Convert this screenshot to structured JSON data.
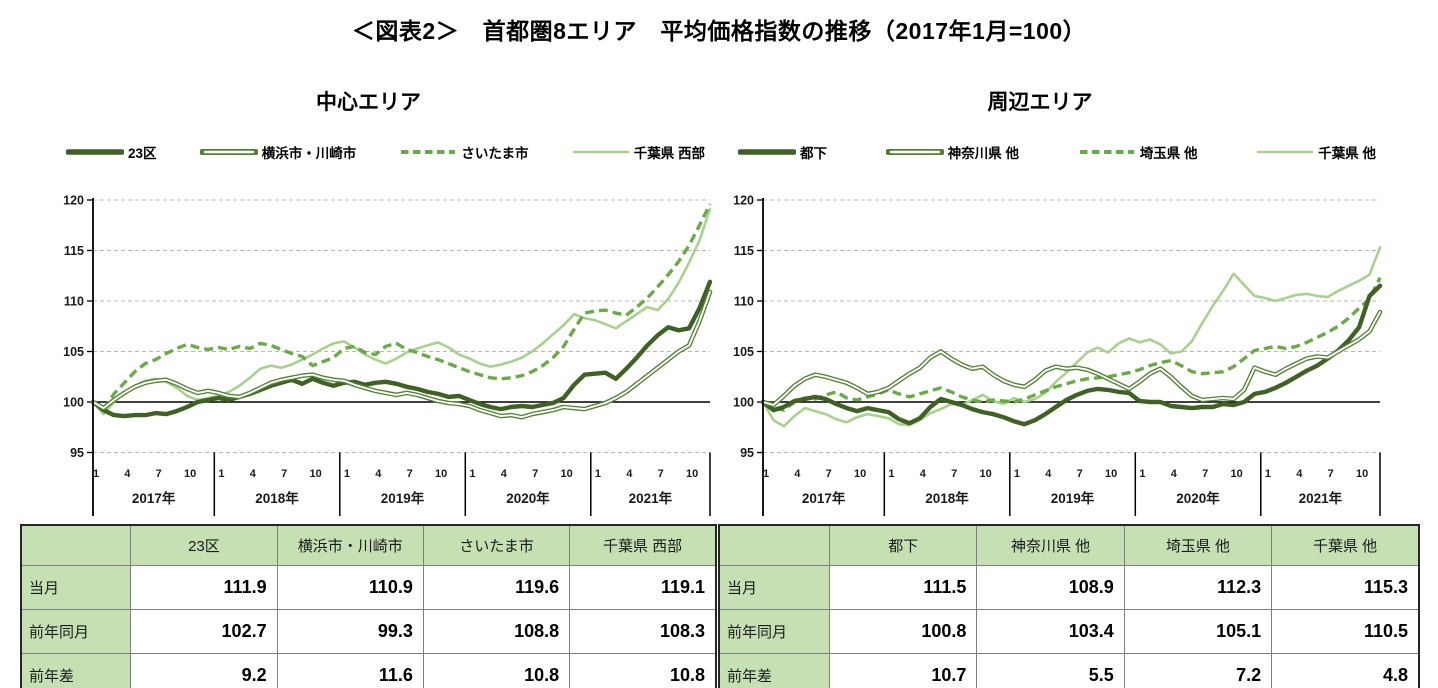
{
  "title": "＜図表2＞　首都圏8エリア　平均価格指数の推移（2017年1月=100）",
  "colors": {
    "dark_green": "#3f6123",
    "outline_green": "#538135",
    "dashed_green": "#6aaa47",
    "light_green": "#a9d18e",
    "table_header_bg": "#c6e0b4",
    "grid_gray": "#b8b8b8",
    "axis_black": "#000000"
  },
  "panels": [
    {
      "chart_title": "中心エリア",
      "table": {
        "corner": "",
        "columns": [
          "23区",
          "横浜市・川崎市",
          "さいたま市",
          "千葉県 西部"
        ],
        "rows": [
          {
            "label": "当月",
            "values": [
              "111.9",
              "110.9",
              "119.6",
              "119.1"
            ]
          },
          {
            "label": "前年同月",
            "values": [
              "102.7",
              "99.3",
              "108.8",
              "108.3"
            ]
          },
          {
            "label": "前年差",
            "values": [
              "9.2",
              "11.6",
              "10.8",
              "10.8"
            ]
          }
        ]
      }
    },
    {
      "chart_title": "周辺エリア",
      "table": {
        "corner": "",
        "columns": [
          "都下",
          "神奈川県 他",
          "埼玉県 他",
          "千葉県 他"
        ],
        "rows": [
          {
            "label": "当月",
            "values": [
              "111.5",
              "108.9",
              "112.3",
              "115.3"
            ]
          },
          {
            "label": "前年同月",
            "values": [
              "100.8",
              "103.4",
              "105.1",
              "110.5"
            ]
          },
          {
            "label": "前年差",
            "values": [
              "10.7",
              "5.5",
              "7.2",
              "4.8"
            ]
          }
        ]
      }
    }
  ],
  "chart_data": [
    {
      "type": "line",
      "title": "中心エリア",
      "x_unit": "month",
      "years": [
        "2017年",
        "2018年",
        "2019年",
        "2020年",
        "2021年"
      ],
      "month_ticks": [
        "1",
        "4",
        "7",
        "10"
      ],
      "ylim": [
        95,
        120
      ],
      "yticks": [
        95,
        100,
        105,
        110,
        115,
        120
      ],
      "baseline": 100,
      "grid": "dashed-horizontal",
      "legend_position": "top",
      "series": [
        {
          "name": "23区",
          "style": "thick-solid",
          "color": "#3f6123",
          "values": [
            100.0,
            99.2,
            98.7,
            98.6,
            98.7,
            98.7,
            98.9,
            98.8,
            99.1,
            99.5,
            100.0,
            100.2,
            100.4,
            100.2,
            100.5,
            100.8,
            101.2,
            101.6,
            101.9,
            102.2,
            101.8,
            102.3,
            101.9,
            101.6,
            101.9,
            102.0,
            101.7,
            101.9,
            102.0,
            101.8,
            101.5,
            101.3,
            101.0,
            100.8,
            100.5,
            100.6,
            100.2,
            99.8,
            99.5,
            99.3,
            99.5,
            99.6,
            99.5,
            99.7,
            99.9,
            100.4,
            101.7,
            102.7,
            102.8,
            102.9,
            102.3,
            103.3,
            104.4,
            105.6,
            106.6,
            107.4,
            107.1,
            107.3,
            109.3,
            111.9
          ]
        },
        {
          "name": "横浜市・川崎市",
          "style": "double-outline",
          "color": "#538135",
          "values": [
            100.0,
            99.4,
            100.2,
            100.9,
            101.5,
            101.9,
            102.1,
            102.2,
            101.8,
            101.3,
            100.9,
            101.1,
            100.9,
            100.6,
            100.5,
            100.9,
            101.4,
            101.9,
            102.2,
            102.4,
            102.6,
            102.7,
            102.4,
            102.2,
            102.1,
            101.7,
            101.4,
            101.1,
            100.9,
            100.7,
            100.9,
            100.7,
            100.4,
            100.1,
            99.9,
            99.8,
            99.6,
            99.2,
            98.9,
            98.6,
            98.7,
            98.5,
            98.8,
            99.0,
            99.2,
            99.5,
            99.4,
            99.3,
            99.6,
            99.9,
            100.4,
            101.0,
            101.8,
            102.6,
            103.4,
            104.2,
            105.0,
            105.6,
            108.0,
            110.9
          ]
        },
        {
          "name": "さいたま市",
          "style": "dashed",
          "color": "#6aaa47",
          "values": [
            100.0,
            99.2,
            100.8,
            101.9,
            103.0,
            103.8,
            104.2,
            104.8,
            105.3,
            105.7,
            105.4,
            105.2,
            105.4,
            105.2,
            105.5,
            105.3,
            105.8,
            105.6,
            105.2,
            104.8,
            104.5,
            103.6,
            104.0,
            104.4,
            105.3,
            105.5,
            104.9,
            104.7,
            105.5,
            105.8,
            105.2,
            104.9,
            104.5,
            104.2,
            103.8,
            103.4,
            103.0,
            102.7,
            102.4,
            102.3,
            102.4,
            102.6,
            103.0,
            103.6,
            104.4,
            105.5,
            107.2,
            108.8,
            109.0,
            109.1,
            108.8,
            108.6,
            109.4,
            110.3,
            111.4,
            112.6,
            113.9,
            115.5,
            117.5,
            119.6
          ]
        },
        {
          "name": "千葉県 西部",
          "style": "thin-solid",
          "color": "#a9d18e",
          "values": [
            100.0,
            98.8,
            100.0,
            100.9,
            101.6,
            102.1,
            102.3,
            102.0,
            101.4,
            100.6,
            100.2,
            100.4,
            100.6,
            101.0,
            101.6,
            102.4,
            103.3,
            103.6,
            103.4,
            103.7,
            104.2,
            104.7,
            105.3,
            105.8,
            106.0,
            105.4,
            104.7,
            104.2,
            103.8,
            104.3,
            104.9,
            105.3,
            105.6,
            105.9,
            105.4,
            104.7,
            104.3,
            103.8,
            103.5,
            103.7,
            104.0,
            104.4,
            105.0,
            105.8,
            106.7,
            107.6,
            108.7,
            108.3,
            108.1,
            107.7,
            107.3,
            108.0,
            108.7,
            109.4,
            109.1,
            110.2,
            111.8,
            113.8,
            116.0,
            119.1
          ]
        }
      ]
    },
    {
      "type": "line",
      "title": "周辺エリア",
      "x_unit": "month",
      "years": [
        "2017年",
        "2018年",
        "2019年",
        "2020年",
        "2021年"
      ],
      "month_ticks": [
        "1",
        "4",
        "7",
        "10"
      ],
      "ylim": [
        95,
        120
      ],
      "yticks": [
        95,
        100,
        105,
        110,
        115,
        120
      ],
      "baseline": 100,
      "grid": "dashed-horizontal",
      "legend_position": "top",
      "series": [
        {
          "name": "都下",
          "style": "thick-solid",
          "color": "#3f6123",
          "values": [
            100.0,
            99.2,
            99.5,
            100.1,
            100.3,
            100.5,
            100.3,
            99.8,
            99.4,
            99.1,
            99.4,
            99.2,
            99.0,
            98.3,
            97.9,
            98.4,
            99.5,
            100.3,
            100.0,
            99.7,
            99.3,
            99.0,
            98.8,
            98.5,
            98.1,
            97.8,
            98.2,
            98.8,
            99.5,
            100.2,
            100.7,
            101.1,
            101.3,
            101.2,
            101.0,
            100.9,
            100.1,
            100.0,
            100.0,
            99.6,
            99.5,
            99.4,
            99.5,
            99.5,
            99.8,
            99.7,
            100.0,
            100.8,
            101.0,
            101.4,
            101.9,
            102.5,
            103.1,
            103.6,
            104.3,
            105.1,
            106.1,
            107.4,
            110.5,
            111.5
          ]
        },
        {
          "name": "神奈川県 他",
          "style": "double-outline",
          "color": "#538135",
          "values": [
            100.0,
            99.7,
            100.6,
            101.6,
            102.3,
            102.7,
            102.5,
            102.2,
            101.9,
            101.4,
            100.8,
            101.0,
            101.4,
            102.1,
            102.8,
            103.4,
            104.4,
            105.0,
            104.3,
            103.7,
            103.3,
            103.5,
            102.7,
            102.1,
            101.7,
            101.5,
            102.2,
            103.1,
            103.5,
            103.3,
            103.4,
            103.2,
            102.8,
            102.3,
            101.8,
            101.3,
            102.0,
            102.8,
            103.3,
            102.5,
            101.5,
            100.6,
            100.2,
            100.3,
            100.4,
            100.3,
            101.2,
            103.4,
            103.0,
            102.7,
            103.3,
            103.8,
            104.3,
            104.5,
            104.4,
            105.0,
            105.6,
            106.2,
            107.0,
            108.9
          ]
        },
        {
          "name": "埼玉県 他",
          "style": "dashed",
          "color": "#6aaa47",
          "values": [
            100.0,
            99.4,
            99.2,
            100.0,
            100.4,
            100.3,
            100.7,
            101.0,
            100.4,
            100.2,
            100.5,
            100.8,
            101.2,
            100.8,
            100.5,
            100.8,
            101.1,
            101.4,
            101.0,
            100.5,
            100.2,
            100.0,
            100.2,
            100.1,
            100.0,
            100.3,
            100.7,
            101.1,
            101.5,
            101.8,
            102.1,
            102.3,
            102.4,
            102.5,
            102.7,
            102.9,
            103.2,
            103.6,
            103.9,
            104.1,
            103.6,
            103.0,
            102.8,
            102.9,
            103.0,
            103.5,
            104.3,
            105.1,
            105.3,
            105.5,
            105.3,
            105.5,
            105.9,
            106.4,
            106.9,
            107.5,
            108.3,
            109.3,
            110.2,
            112.3
          ]
        },
        {
          "name": "千葉県 他",
          "style": "thin-solid",
          "color": "#a9d18e",
          "values": [
            100.0,
            98.2,
            97.6,
            98.6,
            99.4,
            99.1,
            98.8,
            98.3,
            98.0,
            98.5,
            98.8,
            98.6,
            98.4,
            97.8,
            97.7,
            98.2,
            98.9,
            99.3,
            99.8,
            99.7,
            100.2,
            100.7,
            100.1,
            99.8,
            100.4,
            100.0,
            100.3,
            100.9,
            102.0,
            102.9,
            103.9,
            104.9,
            105.4,
            104.9,
            105.8,
            106.3,
            105.9,
            106.2,
            105.7,
            104.8,
            105.0,
            106.0,
            107.8,
            109.5,
            111.0,
            112.7,
            111.6,
            110.5,
            110.3,
            110.0,
            110.3,
            110.6,
            110.7,
            110.5,
            110.4,
            111.0,
            111.5,
            112.0,
            112.6,
            115.3
          ]
        }
      ]
    }
  ]
}
